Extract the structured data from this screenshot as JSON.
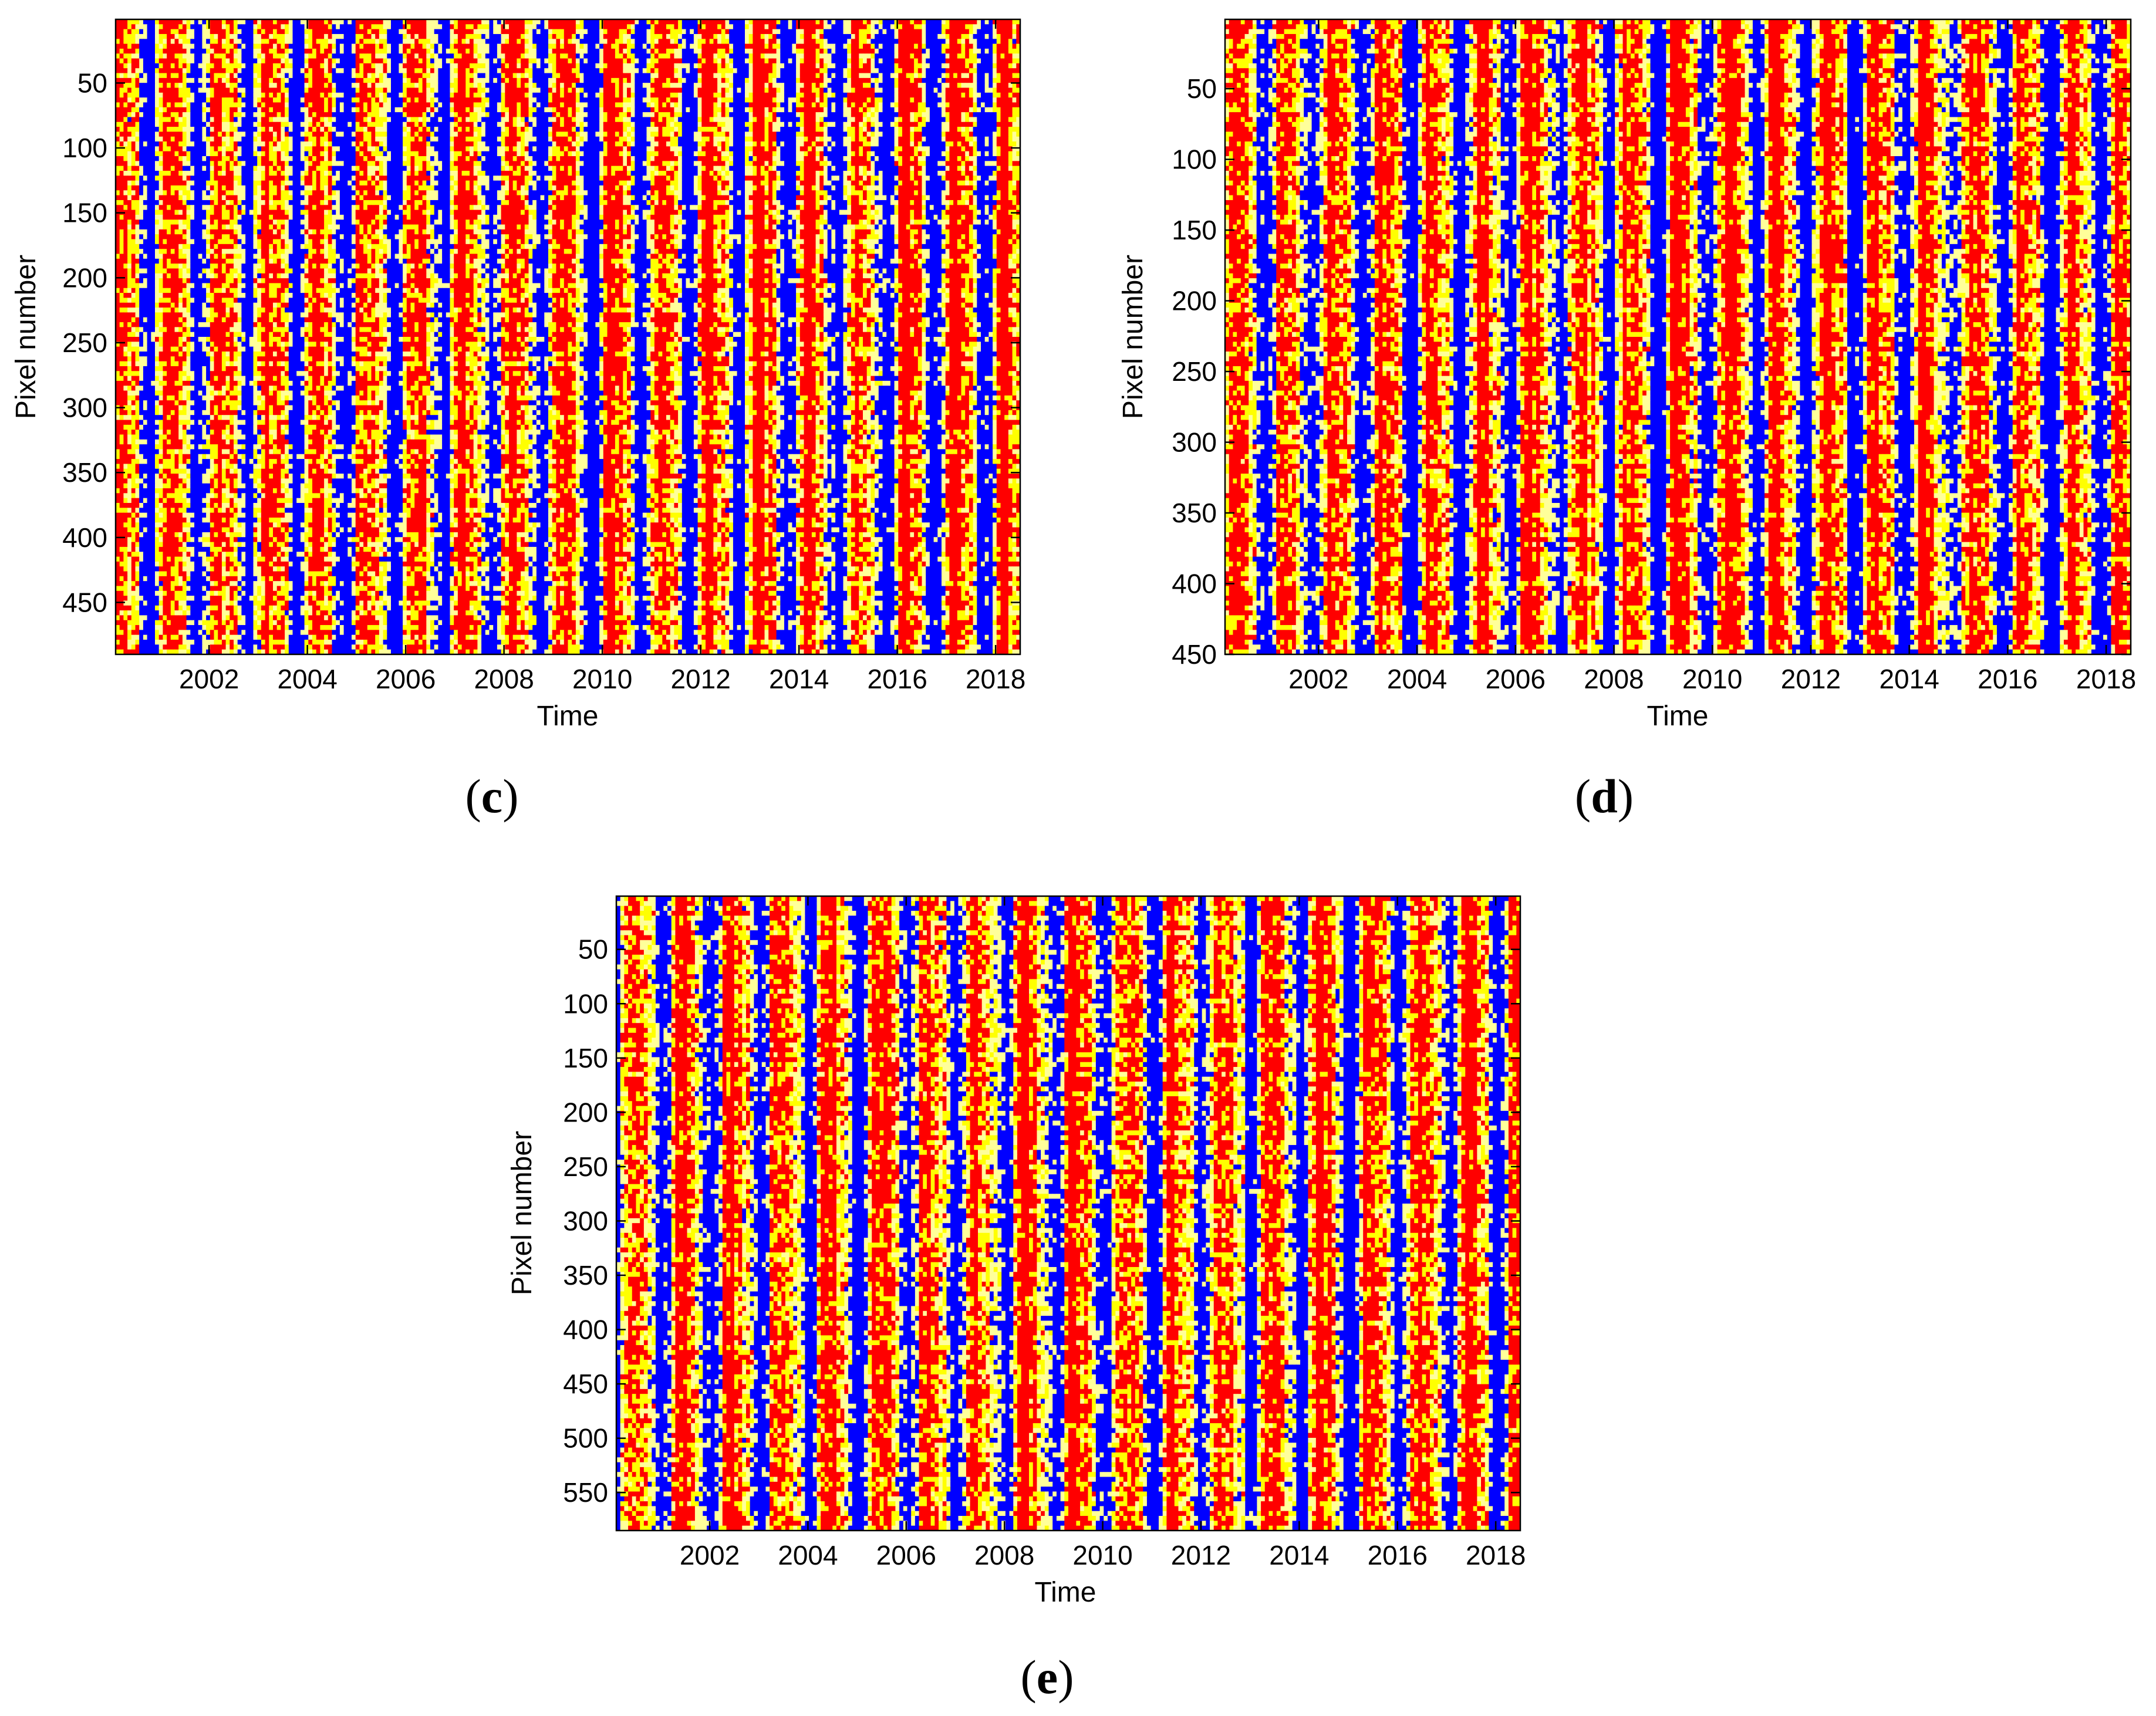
{
  "colors": {
    "blue": "#0000ff",
    "red": "#ff0000",
    "yellow": "#ffff00",
    "pale_yellow": "#ffff9a",
    "axis": "#000000"
  },
  "chart_data": [
    {
      "type": "heatmap",
      "panel": "c",
      "panel_label": {
        "open": "(",
        "letter": "c",
        "close": ")"
      },
      "title": "",
      "xlabel": "Time",
      "ylabel": "Pixel number",
      "xlim": [
        2000.1,
        2018.5
      ],
      "ylim": [
        1,
        490
      ],
      "x_ticks": [
        "2002",
        "2004",
        "2006",
        "2008",
        "2010",
        "2012",
        "2014",
        "2016",
        "2018"
      ],
      "y_ticks": [
        "50",
        "100",
        "150",
        "200",
        "250",
        "300",
        "350",
        "400",
        "450"
      ],
      "colormap": [
        "blue",
        "pale yellow",
        "yellow",
        "red"
      ],
      "phase_shift_years": 0.0,
      "noise_seed": 11
    },
    {
      "type": "heatmap",
      "panel": "d",
      "panel_label": {
        "open": "(",
        "letter": "d",
        "close": ")"
      },
      "title": "",
      "xlabel": "Time",
      "ylabel": "Pixel number",
      "xlim": [
        2000.1,
        2018.5
      ],
      "ylim": [
        1,
        450
      ],
      "x_ticks": [
        "2002",
        "2004",
        "2006",
        "2008",
        "2010",
        "2012",
        "2014",
        "2016",
        "2018"
      ],
      "y_ticks": [
        "50",
        "100",
        "150",
        "200",
        "250",
        "300",
        "350",
        "400",
        "450"
      ],
      "colormap": [
        "blue",
        "pale yellow",
        "yellow",
        "red"
      ],
      "phase_shift_years": 0.12,
      "noise_seed": 23
    },
    {
      "type": "heatmap",
      "panel": "e",
      "panel_label": {
        "open": "(",
        "letter": "e",
        "close": ")"
      },
      "title": "",
      "xlabel": "Time",
      "ylabel": "Pixel number",
      "xlim": [
        2000.1,
        2018.5
      ],
      "ylim": [
        1,
        585
      ],
      "x_ticks": [
        "2002",
        "2004",
        "2006",
        "2008",
        "2010",
        "2012",
        "2014",
        "2016",
        "2018"
      ],
      "y_ticks": [
        "50",
        "100",
        "150",
        "200",
        "250",
        "300",
        "350",
        "400",
        "450",
        "500",
        "550"
      ],
      "colormap": [
        "blue",
        "pale yellow",
        "yellow",
        "red"
      ],
      "phase_shift_years": 0.25,
      "noise_seed": 37
    }
  ]
}
